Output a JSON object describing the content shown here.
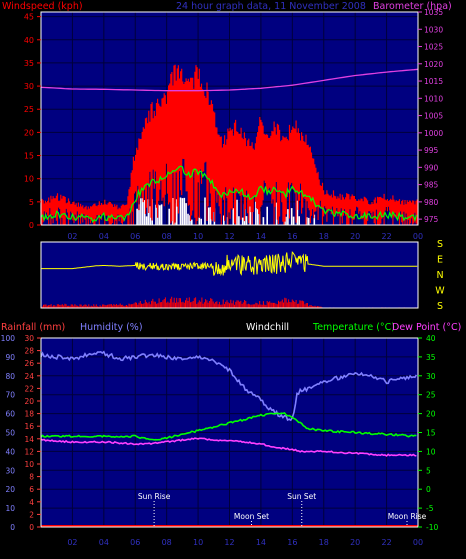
{
  "colors": {
    "background": "#000000",
    "frame": "#ffffff",
    "plot_bg": "#000080",
    "grid": "#00003a",
    "windspeed": "#ff0000",
    "gust": "#ff3030",
    "avg_wind": "#00ff00",
    "barometer": "#e040e0",
    "calm": "#ffffff",
    "direction": "#ffff00",
    "humidity": "#8080ff",
    "temperature": "#00ff00",
    "dewpoint": "#ff40ff",
    "rainfall": "#ff0000",
    "rain_axis": "#ff4040",
    "humidity_axis": "#8080ff",
    "temp_axis": "#00ff00",
    "events": "#ffffff"
  },
  "header": {
    "windspeed_label": "Windspeed (kph)",
    "title": "24 hour graph data, 11 November 2008",
    "barometer_label": "Barometer (hpa)"
  },
  "x_ticks": [
    "02",
    "04",
    "06",
    "08",
    "10",
    "12",
    "14",
    "16",
    "18",
    "20",
    "22",
    "00"
  ],
  "wind_y_ticks": [
    "0",
    "5",
    "10",
    "15",
    "20",
    "25",
    "30",
    "35",
    "40",
    "45"
  ],
  "baro_y_ticks": [
    "975",
    "980",
    "985",
    "990",
    "995",
    "1000",
    "1005",
    "1010",
    "1015",
    "1020",
    "1025",
    "1030",
    "1035"
  ],
  "direction_labels": [
    "S",
    "E",
    "N",
    "W",
    "S"
  ],
  "lower_header": {
    "rainfall_label": "Rainfall (mm)",
    "humidity_label": "Humidity (%)",
    "windchill_label": "Windchill",
    "temperature_label": "Temperature (°C)",
    "dewpoint_label": "Dew Point (°C)"
  },
  "humidity_y_ticks": [
    "0",
    "10",
    "20",
    "30",
    "40",
    "50",
    "60",
    "70",
    "80",
    "90",
    "100"
  ],
  "rain_y_ticks": [
    "0",
    "2",
    "4",
    "6",
    "8",
    "10",
    "12",
    "14",
    "16",
    "18",
    "20",
    "22",
    "24",
    "26",
    "28",
    "30"
  ],
  "temp_y_ticks": [
    "-10",
    "-5",
    "0",
    "5",
    "10",
    "15",
    "20",
    "25",
    "30",
    "35",
    "40"
  ],
  "events": [
    {
      "label": "Sun Rise",
      "hour": 7.2,
      "row": "upper"
    },
    {
      "label": "Sun Set",
      "hour": 16.6,
      "row": "upper"
    },
    {
      "label": "Moon Set",
      "hour": 13.4,
      "row": "lower"
    },
    {
      "label": "Moon Rise",
      "hour": 23.3,
      "row": "lower"
    }
  ],
  "chart_data": [
    {
      "type": "line",
      "title": "24 hour graph data, 11 November 2008",
      "xlabel": "",
      "x_unit": "hour of day",
      "xlim": [
        0,
        24
      ],
      "series": [
        {
          "name": "Windspeed (kph)",
          "axis": "left",
          "ylim": [
            0,
            46
          ],
          "x": [
            0,
            1,
            2,
            3,
            4,
            5,
            5.5,
            6,
            6.5,
            7,
            7.5,
            8,
            8.5,
            9,
            9.5,
            10,
            10.5,
            11,
            11.5,
            12,
            12.5,
            13,
            13.5,
            14,
            14.5,
            15,
            15.5,
            16,
            16.5,
            17,
            17.5,
            18,
            19,
            20,
            21,
            22,
            23,
            24
          ],
          "y": [
            4,
            5,
            4,
            3,
            4,
            3,
            4,
            13,
            17,
            20,
            21,
            23,
            26,
            27,
            24,
            26,
            24,
            19,
            14,
            16,
            17,
            15,
            13,
            18,
            16,
            17,
            14,
            18,
            16,
            14,
            10,
            6,
            5,
            5,
            4,
            5,
            4,
            4
          ]
        },
        {
          "name": "Barometer (hpa)",
          "axis": "right",
          "ylim": [
            973.3,
            1035
          ],
          "x": [
            0,
            2,
            4,
            6,
            8,
            10,
            12,
            14,
            16,
            18,
            20,
            22,
            24
          ],
          "y": [
            1013.2,
            1012.7,
            1012.6,
            1012.4,
            1012.2,
            1012.2,
            1012.4,
            1012.9,
            1013.8,
            1015.2,
            1016.6,
            1017.6,
            1018.4
          ]
        }
      ]
    },
    {
      "type": "line",
      "title": "",
      "x_unit": "hour of day",
      "xlim": [
        0,
        24
      ],
      "series": [
        {
          "name": "Wind direction",
          "ylim": [
            0,
            360
          ],
          "x": [
            0,
            2,
            3.5,
            4,
            5,
            6,
            7,
            8,
            9,
            10,
            11,
            12,
            13,
            14,
            15,
            16,
            16.5,
            17,
            18,
            20,
            22,
            24
          ],
          "y": [
            215,
            215,
            230,
            232,
            228,
            232,
            226,
            228,
            225,
            230,
            222,
            240,
            235,
            232,
            240,
            255,
            265,
            240,
            228,
            228,
            228,
            228
          ]
        },
        {
          "name": "Windspeed",
          "ylim": [
            0,
            46
          ],
          "x": [
            0,
            2,
            4,
            6,
            7,
            8,
            9,
            10,
            11,
            12,
            13,
            14,
            15,
            16,
            17,
            18,
            20,
            22,
            24
          ],
          "y": [
            3,
            4,
            3,
            5,
            8,
            9,
            10,
            9,
            8,
            7,
            7,
            6,
            7,
            10,
            4,
            0.5,
            0.5,
            0.5,
            0.5
          ]
        }
      ]
    },
    {
      "type": "line",
      "title": "",
      "xlabel": "",
      "x_unit": "hour of day",
      "xlim": [
        0,
        24
      ],
      "series": [
        {
          "name": "Humidity (%)",
          "axis": "humidity",
          "ylim": [
            0,
            100
          ],
          "x": [
            0,
            1,
            2,
            3,
            4,
            5,
            6,
            7,
            8,
            9,
            10,
            11,
            12,
            12.5,
            13,
            13.5,
            14,
            14.5,
            15,
            15.5,
            16,
            16.3,
            16.5,
            17,
            18,
            19,
            20,
            21,
            22,
            23,
            24
          ],
          "y": [
            91,
            90,
            89,
            91,
            92,
            89,
            90,
            91,
            90,
            89,
            90,
            88,
            83,
            78,
            73,
            70,
            67,
            63,
            60,
            58,
            57,
            70,
            72,
            73,
            77,
            79,
            82,
            80,
            77,
            79,
            80
          ]
        },
        {
          "name": "Temperature (°C)",
          "axis": "temp",
          "ylim": [
            -10,
            40
          ],
          "x": [
            0,
            2,
            4,
            6,
            7,
            8,
            9,
            10,
            11,
            12,
            13,
            14,
            15,
            15.5,
            16,
            17,
            18,
            20,
            22,
            24
          ],
          "y": [
            14,
            14,
            14,
            14,
            13,
            13.5,
            14.5,
            15.5,
            16.5,
            17.5,
            18.5,
            19.5,
            20,
            20,
            19,
            16,
            15.5,
            15,
            14.5,
            14
          ]
        },
        {
          "name": "Dew Point (°C)",
          "axis": "temp",
          "ylim": [
            -10,
            40
          ],
          "x": [
            0,
            2,
            4,
            6,
            7,
            8,
            9,
            10,
            11,
            12,
            13,
            14,
            15,
            16,
            16.5,
            17,
            18,
            20,
            22,
            24
          ],
          "y": [
            13,
            12.5,
            12.5,
            12,
            12,
            12.5,
            13,
            13.5,
            13,
            13,
            12.5,
            12,
            11,
            10.5,
            10,
            10,
            10,
            9.5,
            9,
            9
          ]
        },
        {
          "name": "Rainfall (mm)",
          "axis": "rain",
          "ylim": [
            0,
            30
          ],
          "x": [
            0,
            24
          ],
          "y": [
            0,
            0
          ]
        }
      ]
    }
  ]
}
